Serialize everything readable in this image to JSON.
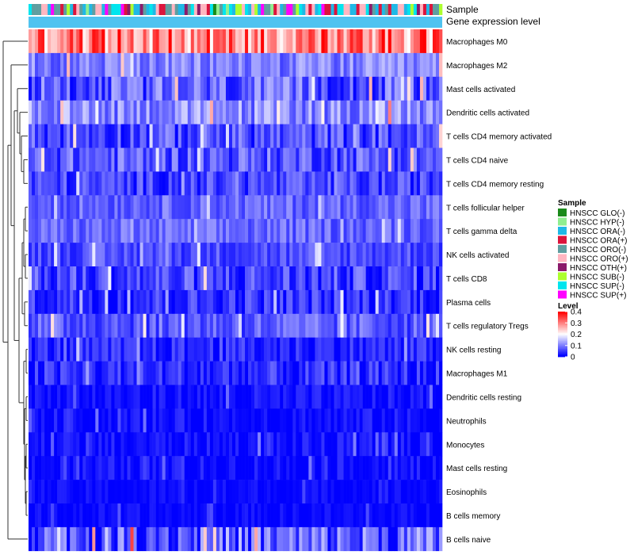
{
  "chart_data": {
    "type": "heatmap",
    "annotations": [
      "Sample",
      "Gene expression level"
    ],
    "rows": [
      {
        "label": "Macrophages M0",
        "mean": 0.3,
        "spread": 0.1
      },
      {
        "label": "Macrophages M2",
        "mean": 0.1,
        "spread": 0.05
      },
      {
        "label": "Mast cells activated",
        "mean": 0.07,
        "spread": 0.07
      },
      {
        "label": "Dendritic cells activated",
        "mean": 0.11,
        "spread": 0.06
      },
      {
        "label": "T cells CD4 memory activated",
        "mean": 0.06,
        "spread": 0.06
      },
      {
        "label": "T cells CD4 naive",
        "mean": 0.07,
        "spread": 0.06
      },
      {
        "label": "T cells CD4 memory resting",
        "mean": 0.05,
        "spread": 0.05
      },
      {
        "label": "T cells follicular helper",
        "mean": 0.08,
        "spread": 0.04
      },
      {
        "label": "T cells gamma delta",
        "mean": 0.08,
        "spread": 0.04
      },
      {
        "label": "NK cells activated",
        "mean": 0.06,
        "spread": 0.04
      },
      {
        "label": "T cells CD8",
        "mean": 0.05,
        "spread": 0.06
      },
      {
        "label": "Plasma cells",
        "mean": 0.04,
        "spread": 0.05
      },
      {
        "label": "T cells regulatory  Tregs",
        "mean": 0.07,
        "spread": 0.05
      },
      {
        "label": "NK cells resting",
        "mean": 0.03,
        "spread": 0.04
      },
      {
        "label": "Macrophages M1",
        "mean": 0.03,
        "spread": 0.05
      },
      {
        "label": "Dendritic cells resting",
        "mean": 0.01,
        "spread": 0.03
      },
      {
        "label": "Neutrophils",
        "mean": 0.01,
        "spread": 0.03
      },
      {
        "label": "Monocytes",
        "mean": 0.01,
        "spread": 0.03
      },
      {
        "label": "Mast cells resting",
        "mean": 0.01,
        "spread": 0.03
      },
      {
        "label": "Eosinophils",
        "mean": 0.005,
        "spread": 0.02
      },
      {
        "label": "B cells memory",
        "mean": 0.005,
        "spread": 0.02
      },
      {
        "label": "B cells naive",
        "mean": 0.07,
        "spread": 0.09
      }
    ],
    "n_samples": 130,
    "legend": {
      "sample_title": "Sample",
      "samples": [
        {
          "label": "HNSCC GLO(-)",
          "color": "#1a8a1a"
        },
        {
          "label": "HNSCC HYP(-)",
          "color": "#90ee90"
        },
        {
          "label": "HNSCC ORA(-)",
          "color": "#1fb8e6"
        },
        {
          "label": "HNSCC ORA(+)",
          "color": "#dc143c"
        },
        {
          "label": "HNSCC ORO(-)",
          "color": "#5f9ea0"
        },
        {
          "label": "HNSCC ORO(+)",
          "color": "#ffb6c1"
        },
        {
          "label": "HNSCC OTH(+)",
          "color": "#8b1a6b"
        },
        {
          "label": "HNSCC SUB(-)",
          "color": "#adff2f"
        },
        {
          "label": "HNSCC SUP(-)",
          "color": "#00e5ee"
        },
        {
          "label": "HNSCC SUP(+)",
          "color": "#ff00ff"
        }
      ],
      "level_title": "Level",
      "level_ticks": [
        "0.4",
        "0.3",
        "0.2",
        "0.1",
        "0"
      ],
      "level_values": [
        0.4,
        0.3,
        0.2,
        0.1,
        0
      ]
    },
    "color_scale": {
      "min": 0,
      "max": 0.4,
      "low": "#0000ff",
      "mid": "#ffffff",
      "high": "#ff0000"
    },
    "gene_expression_color": "#4fc3f0"
  }
}
